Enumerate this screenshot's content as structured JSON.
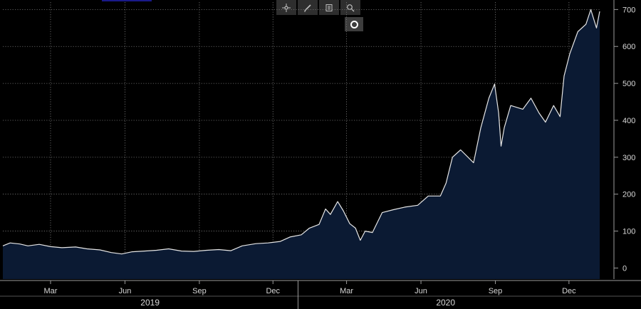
{
  "toolbar": {
    "icons": [
      "crosshair-icon",
      "pencil-icon",
      "notes-icon",
      "zoom-icon"
    ],
    "record_icon": "record-icon"
  },
  "colors": {
    "background": "#000000",
    "line": "#e6e6e6",
    "area_fill": "#0b1a33",
    "grid": "#7a7a7a",
    "axis_text": "#d8d8d8"
  },
  "chart_data": {
    "type": "area",
    "title": "",
    "xlabel": "",
    "ylabel": "",
    "y_axis_side": "right",
    "grid": true,
    "ylim": [
      -30,
      720
    ],
    "yticks": [
      0,
      100,
      200,
      300,
      400,
      500,
      600,
      700
    ],
    "month_ticks": [
      {
        "label": "Mar",
        "date": "2019-03-01"
      },
      {
        "label": "Jun",
        "date": "2019-06-01"
      },
      {
        "label": "Sep",
        "date": "2019-09-01"
      },
      {
        "label": "Dec",
        "date": "2019-12-01"
      },
      {
        "label": "Mar",
        "date": "2020-03-01"
      },
      {
        "label": "Jun",
        "date": "2020-06-01"
      },
      {
        "label": "Sep",
        "date": "2020-09-01"
      },
      {
        "label": "Dec",
        "date": "2020-12-01"
      }
    ],
    "year_labels": [
      {
        "label": "2019",
        "from": "2019-01-01",
        "to": "2019-12-31"
      },
      {
        "label": "2020",
        "from": "2020-01-01",
        "to": "2020-12-31"
      }
    ],
    "x_range": [
      "2019-01-01",
      "2021-01-08"
    ],
    "series": [
      {
        "name": "",
        "points": [
          [
            "2019-01-01",
            60
          ],
          [
            "2019-01-10",
            68
          ],
          [
            "2019-01-22",
            65
          ],
          [
            "2019-02-01",
            60
          ],
          [
            "2019-02-15",
            64
          ],
          [
            "2019-03-01",
            58
          ],
          [
            "2019-03-15",
            55
          ],
          [
            "2019-04-01",
            57
          ],
          [
            "2019-04-15",
            52
          ],
          [
            "2019-05-01",
            49
          ],
          [
            "2019-05-15",
            42
          ],
          [
            "2019-05-28",
            38
          ],
          [
            "2019-06-10",
            44
          ],
          [
            "2019-06-25",
            46
          ],
          [
            "2019-07-10",
            48
          ],
          [
            "2019-07-25",
            52
          ],
          [
            "2019-08-10",
            46
          ],
          [
            "2019-08-25",
            45
          ],
          [
            "2019-09-10",
            48
          ],
          [
            "2019-09-25",
            50
          ],
          [
            "2019-10-10",
            47
          ],
          [
            "2019-10-24",
            60
          ],
          [
            "2019-11-10",
            66
          ],
          [
            "2019-11-25",
            68
          ],
          [
            "2019-12-10",
            72
          ],
          [
            "2019-12-22",
            84
          ],
          [
            "2020-01-05",
            90
          ],
          [
            "2020-01-15",
            108
          ],
          [
            "2020-01-27",
            118
          ],
          [
            "2020-02-04",
            160
          ],
          [
            "2020-02-10",
            145
          ],
          [
            "2020-02-19",
            180
          ],
          [
            "2020-02-26",
            155
          ],
          [
            "2020-03-05",
            120
          ],
          [
            "2020-03-12",
            108
          ],
          [
            "2020-03-18",
            75
          ],
          [
            "2020-03-24",
            100
          ],
          [
            "2020-04-02",
            96
          ],
          [
            "2020-04-14",
            150
          ],
          [
            "2020-04-28",
            158
          ],
          [
            "2020-05-12",
            165
          ],
          [
            "2020-05-28",
            170
          ],
          [
            "2020-06-10",
            195
          ],
          [
            "2020-06-25",
            195
          ],
          [
            "2020-07-02",
            230
          ],
          [
            "2020-07-10",
            300
          ],
          [
            "2020-07-20",
            320
          ],
          [
            "2020-08-05",
            285
          ],
          [
            "2020-08-14",
            380
          ],
          [
            "2020-08-24",
            460
          ],
          [
            "2020-08-31",
            498
          ],
          [
            "2020-09-05",
            420
          ],
          [
            "2020-09-08",
            330
          ],
          [
            "2020-09-12",
            380
          ],
          [
            "2020-09-20",
            440
          ],
          [
            "2020-10-05",
            430
          ],
          [
            "2020-10-15",
            460
          ],
          [
            "2020-10-25",
            420
          ],
          [
            "2020-11-02",
            395
          ],
          [
            "2020-11-12",
            440
          ],
          [
            "2020-11-20",
            410
          ],
          [
            "2020-11-25",
            520
          ],
          [
            "2020-12-02",
            580
          ],
          [
            "2020-12-12",
            640
          ],
          [
            "2020-12-22",
            660
          ],
          [
            "2020-12-28",
            700
          ],
          [
            "2021-01-04",
            650
          ],
          [
            "2021-01-08",
            695
          ]
        ]
      }
    ]
  }
}
